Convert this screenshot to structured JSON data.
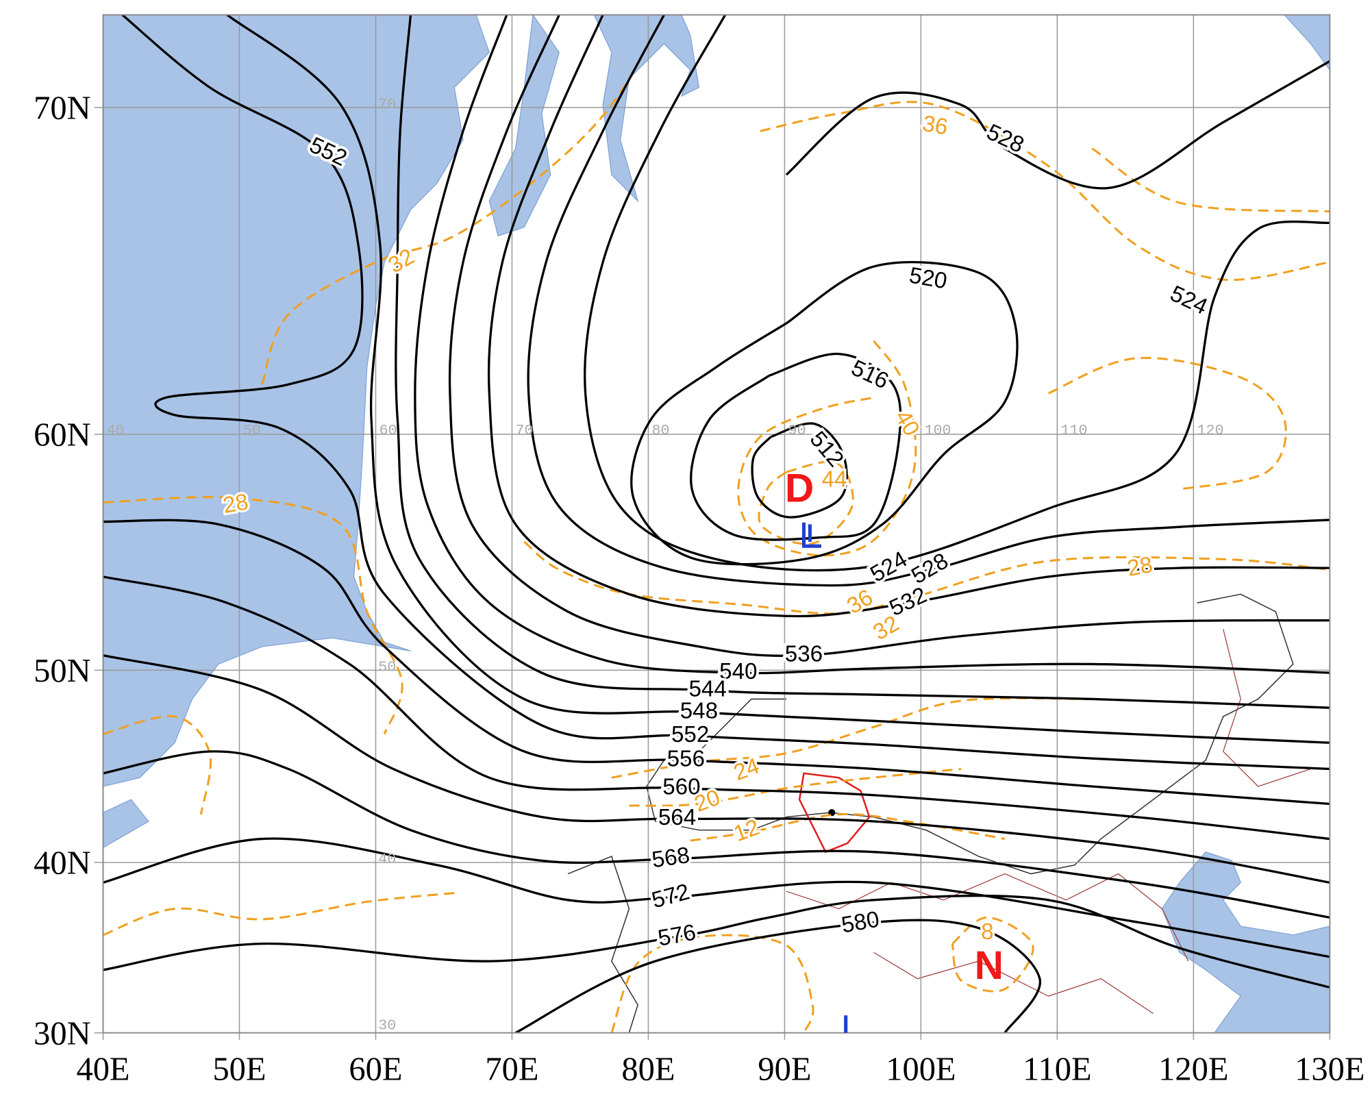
{
  "axes": {
    "lat_labels": [
      "70N",
      "60N",
      "50N",
      "40N",
      "30N"
    ],
    "lon_labels": [
      "40E",
      "50E",
      "60E",
      "70E",
      "80E",
      "90E",
      "100E",
      "110E",
      "120E",
      "130E"
    ]
  },
  "grid_labels": [
    "70",
    "40",
    "50",
    "60",
    "70",
    "80",
    "90",
    "100",
    "110",
    "120",
    "50",
    "40",
    "30"
  ],
  "height_contour_labels": [
    "552",
    "528",
    "520",
    "524",
    "516",
    "512",
    "524",
    "528",
    "532",
    "536",
    "540",
    "544",
    "548",
    "552",
    "556",
    "560",
    "564",
    "568",
    "572",
    "576",
    "580"
  ],
  "temperature_contour_labels": [
    "28",
    "32",
    "36",
    "40",
    "44",
    "36",
    "32",
    "28",
    "24",
    "20",
    "12",
    "8"
  ],
  "markers": [
    "D",
    "N"
  ]
}
